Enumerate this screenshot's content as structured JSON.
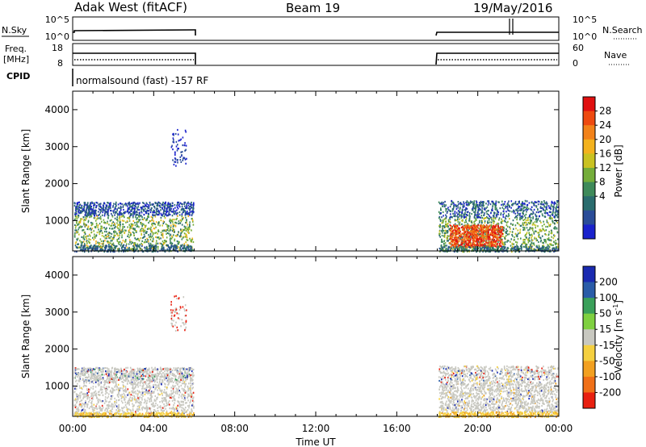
{
  "header": {
    "station": "Adak West (fitACF)",
    "beam": "Beam 19",
    "date": "19/May/2016"
  },
  "status_panels": {
    "nsky_label": "N.Sky",
    "nsky_ticks": [
      "10^5",
      "10^0"
    ],
    "nsearch_label": "N.Search",
    "nsearch_ticks": [
      "10^5",
      "10^0"
    ],
    "freq_label_1": "Freq.",
    "freq_label_2": "[MHz]",
    "freq_ticks": [
      "18",
      "8"
    ],
    "nave_label": "Nave",
    "nave_ticks": [
      "60",
      "0"
    ],
    "cpid_label": "CPID",
    "cpid_text": "normalsound (fast) -157 RF"
  },
  "chart_data": [
    {
      "type": "heatmap",
      "name": "power",
      "ylabel": "Slant Range [km]",
      "yticks": [
        "4000",
        "3000",
        "2000",
        "1000"
      ],
      "ylim": [
        180,
        4500
      ],
      "xlim_hours": [
        0,
        24
      ],
      "colorbar_label": "Power [dB]",
      "colorbar_ticks": [
        "28",
        "24",
        "20",
        "16",
        "12",
        "8",
        "4"
      ],
      "colorbar_colors": [
        "#e01010",
        "#ee4a10",
        "#f2821a",
        "#f3b21e",
        "#c9c222",
        "#74ad3a",
        "#3e8a5a",
        "#2a6c6e",
        "#2a4c98",
        "#1a22cc"
      ],
      "coverage_hours": [
        [
          0,
          6
        ],
        [
          18,
          24
        ]
      ]
    },
    {
      "type": "heatmap",
      "name": "velocity",
      "ylabel": "Slant Range [km]",
      "yticks": [
        "4000",
        "3000",
        "2000",
        "1000"
      ],
      "ylim": [
        180,
        4500
      ],
      "xlim_hours": [
        0,
        24
      ],
      "colorbar_label": "Velocity [m s",
      "colorbar_label_sup": "-1",
      "colorbar_label_end": "]",
      "colorbar_ticks": [
        "200",
        "100",
        "50",
        "15",
        "-15",
        "-50",
        "-100",
        "-200"
      ],
      "colorbar_colors": [
        "#1a2ab0",
        "#2a5ca8",
        "#3aa05a",
        "#7fd040",
        "#c8c8c0",
        "#f5d040",
        "#f2a020",
        "#f07018",
        "#e82010"
      ],
      "coverage_hours": [
        [
          0,
          6
        ],
        [
          18,
          24
        ]
      ]
    }
  ],
  "x_axis": {
    "ticks": [
      "00:00",
      "04:00",
      "08:00",
      "12:00",
      "16:00",
      "20:00",
      "00:00"
    ],
    "label": "Time UT"
  }
}
